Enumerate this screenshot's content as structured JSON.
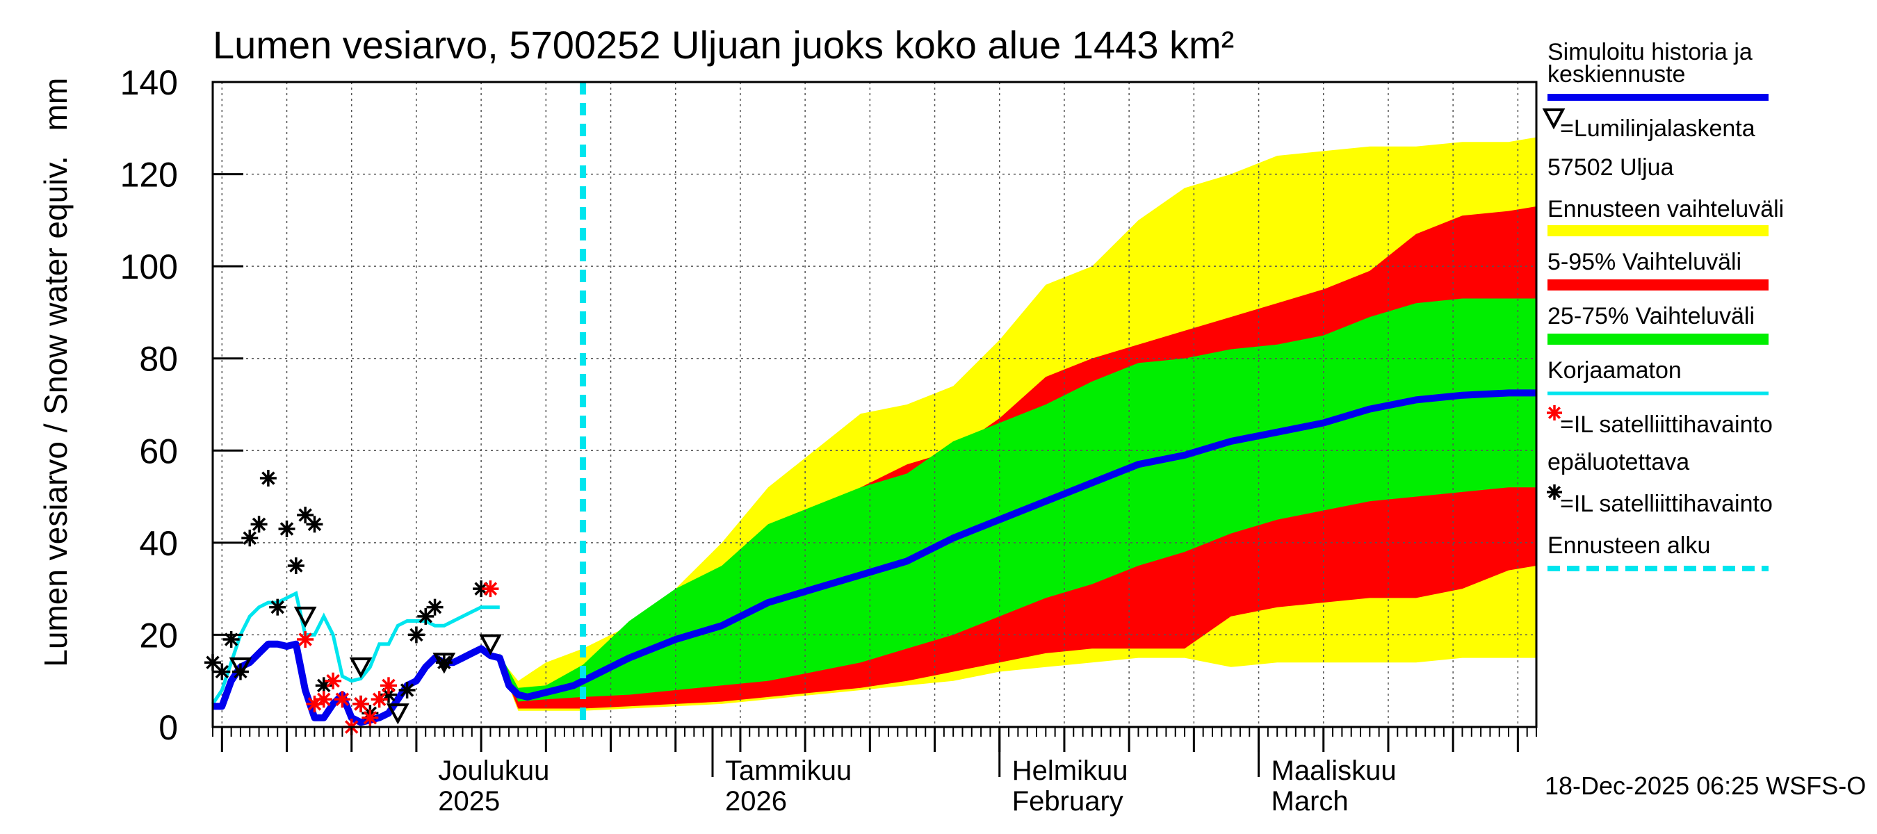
{
  "chart_data": {
    "type": "area",
    "title": "Lumen vesiarvo, 5700252 Uljuan juoks koko alue 1443 km²",
    "ylabel": "Lumen vesiarvo / Snow water equiv.",
    "yunit": "mm",
    "ylim": [
      0,
      140
    ],
    "yticks": [
      0,
      20,
      40,
      60,
      80,
      100,
      120,
      140
    ],
    "grid": true,
    "x_start": "2025-11-08",
    "x_end": "2026-03-31",
    "forecast_start": "2025-12-18",
    "month_labels": [
      {
        "line1": "Joulukuu",
        "line2": "2025",
        "date": "2025-12-01"
      },
      {
        "line1": "Tammikuu",
        "line2": "2026",
        "date": "2026-01-01"
      },
      {
        "line1": "Helmikuu",
        "line2": "February",
        "date": "2026-02-01"
      },
      {
        "line1": "Maaliskuu",
        "line2": "March",
        "date": "2026-03-01"
      }
    ],
    "legend": [
      {
        "label": "Simuloitu historia ja keskiennuste",
        "color": "#0000ee",
        "kind": "thick-line"
      },
      {
        "label": "=Lumilinjalaskenta 57502 Uljua",
        "color": "#000000",
        "kind": "triangle"
      },
      {
        "label": "Ennusteen vaihteluväli",
        "color": "#ffff00",
        "kind": "band"
      },
      {
        "label": "5-95% Vaihteluväli",
        "color": "#ff0000",
        "kind": "band"
      },
      {
        "label": "25-75% Vaihteluväli",
        "color": "#00ee00",
        "kind": "band"
      },
      {
        "label": "Korjaamaton",
        "color": "#00e5ee",
        "kind": "line"
      },
      {
        "label": "=IL satelliittihavainto epäluotettava",
        "color": "#ff0000",
        "kind": "star"
      },
      {
        "label": "=IL satelliittihavainto",
        "color": "#000000",
        "kind": "star"
      },
      {
        "label": "Ennusteen alku",
        "color": "#00e5ee",
        "kind": "dashed-line"
      }
    ],
    "series": [
      {
        "name": "Simuloitu historia ja keskiennuste",
        "days": [
          0,
          1,
          2,
          3,
          4,
          5,
          6,
          7,
          8,
          9,
          10,
          11,
          12,
          13,
          14,
          15,
          16,
          17,
          18,
          19,
          20,
          21,
          22,
          23,
          24,
          25,
          26,
          27,
          28,
          29,
          30,
          31,
          32,
          33,
          34,
          35,
          36,
          37,
          38,
          39,
          40,
          41,
          42,
          43,
          45,
          50,
          55,
          60,
          65,
          70,
          75,
          80,
          85,
          90,
          95,
          100,
          105,
          110,
          115,
          120,
          125,
          130,
          135,
          140,
          143
        ],
        "values": [
          4.5,
          4.5,
          10,
          13,
          14,
          16,
          18,
          18,
          17.5,
          18,
          8,
          2,
          2,
          5,
          7,
          2,
          1,
          1.5,
          2,
          3,
          6,
          9,
          10,
          13,
          15,
          14,
          14,
          15,
          16,
          17,
          15.5,
          15,
          9,
          7,
          6.5,
          7,
          7.5,
          8,
          8.5,
          9,
          10,
          11,
          12,
          13,
          15,
          19,
          22,
          27,
          30,
          33,
          36,
          41,
          45,
          49,
          53,
          57,
          59,
          62,
          64,
          66,
          69,
          71,
          72,
          72.5,
          72.5
        ]
      },
      {
        "name": "Korjaamaton",
        "days": [
          0,
          1,
          2,
          3,
          4,
          5,
          6,
          7,
          8,
          9,
          10,
          11,
          12,
          13,
          14,
          15,
          16,
          17,
          18,
          19,
          20,
          21,
          22,
          23,
          24,
          25,
          26,
          27,
          28,
          29,
          30,
          31
        ],
        "values": [
          5,
          8,
          14,
          20,
          24,
          26,
          27,
          27,
          28,
          29,
          20,
          20,
          24,
          20,
          11,
          10,
          10.5,
          13,
          18,
          18,
          22,
          23,
          23,
          23,
          22,
          22,
          23,
          24,
          25,
          26,
          26,
          26
        ]
      },
      {
        "name": "Ennusteen vaihteluväli",
        "days": [
          31,
          33,
          36,
          40,
          45,
          50,
          55,
          60,
          65,
          70,
          75,
          80,
          85,
          90,
          95,
          100,
          105,
          110,
          115,
          120,
          125,
          130,
          135,
          140,
          143
        ],
        "lower": [
          14,
          3.5,
          3.5,
          3.5,
          4,
          4.5,
          5,
          6,
          7,
          8,
          9,
          10,
          12,
          13,
          14,
          15,
          15,
          13,
          14,
          14,
          14,
          14,
          15,
          15,
          15
        ],
        "upper": [
          15,
          10,
          14,
          17,
          22,
          30,
          40,
          52,
          60,
          68,
          70,
          74,
          84,
          96,
          100,
          110,
          117,
          120,
          124,
          125,
          126,
          126,
          127,
          127,
          128
        ]
      },
      {
        "name": "5-95% Vaihteluväli",
        "days": [
          31,
          33,
          36,
          40,
          45,
          50,
          55,
          60,
          65,
          70,
          75,
          80,
          85,
          90,
          95,
          100,
          105,
          110,
          115,
          120,
          125,
          130,
          135,
          140,
          143
        ],
        "lower": [
          14,
          4,
          4,
          4,
          4.5,
          5,
          5.5,
          6.5,
          7.5,
          8.5,
          10,
          12,
          14,
          16,
          17,
          17,
          17,
          24,
          26,
          27,
          28,
          28,
          30,
          34,
          35
        ],
        "upper": [
          15,
          7,
          9,
          13,
          17,
          20,
          24,
          34,
          44,
          52,
          57,
          60,
          67,
          76,
          80,
          83,
          86,
          89,
          92,
          95,
          99,
          107,
          111,
          112,
          113
        ]
      },
      {
        "name": "25-75% Vaihteluväli",
        "days": [
          31,
          33,
          36,
          40,
          45,
          50,
          55,
          60,
          65,
          70,
          75,
          80,
          85,
          90,
          95,
          100,
          105,
          110,
          115,
          120,
          125,
          130,
          135,
          140,
          143
        ],
        "lower": [
          14,
          5.5,
          6,
          6.5,
          7,
          8,
          9,
          10,
          12,
          14,
          17,
          20,
          24,
          28,
          31,
          35,
          38,
          42,
          45,
          47,
          49,
          50,
          51,
          52,
          52
        ]
      },
      {
        "name": "=Lumilinjalaskenta 57502 Uljua",
        "days": [
          3,
          10,
          16,
          20,
          25,
          30
        ],
        "values": [
          13,
          24,
          13,
          3,
          14,
          18
        ]
      },
      {
        "name": "=IL satelliittihavainto",
        "days": [
          0,
          1,
          2,
          3,
          4,
          5,
          6,
          7,
          8,
          9,
          10,
          11,
          12,
          16,
          17,
          19,
          21,
          22,
          23,
          24,
          25,
          29
        ],
        "values": [
          14,
          12,
          19,
          12,
          41,
          44,
          54,
          26,
          43,
          35,
          46,
          44,
          9,
          5,
          3,
          7,
          8,
          20,
          24,
          26,
          14,
          30
        ]
      },
      {
        "name": "=IL satelliittihavainto epäluotettava",
        "days": [
          10,
          11,
          12,
          13,
          14,
          15,
          16,
          17,
          18,
          19,
          30
        ],
        "values": [
          19,
          5,
          6,
          10,
          6,
          0,
          5,
          2,
          6,
          9,
          30
        ]
      }
    ],
    "footer": "18-Dec-2025 06:25 WSFS-O"
  }
}
